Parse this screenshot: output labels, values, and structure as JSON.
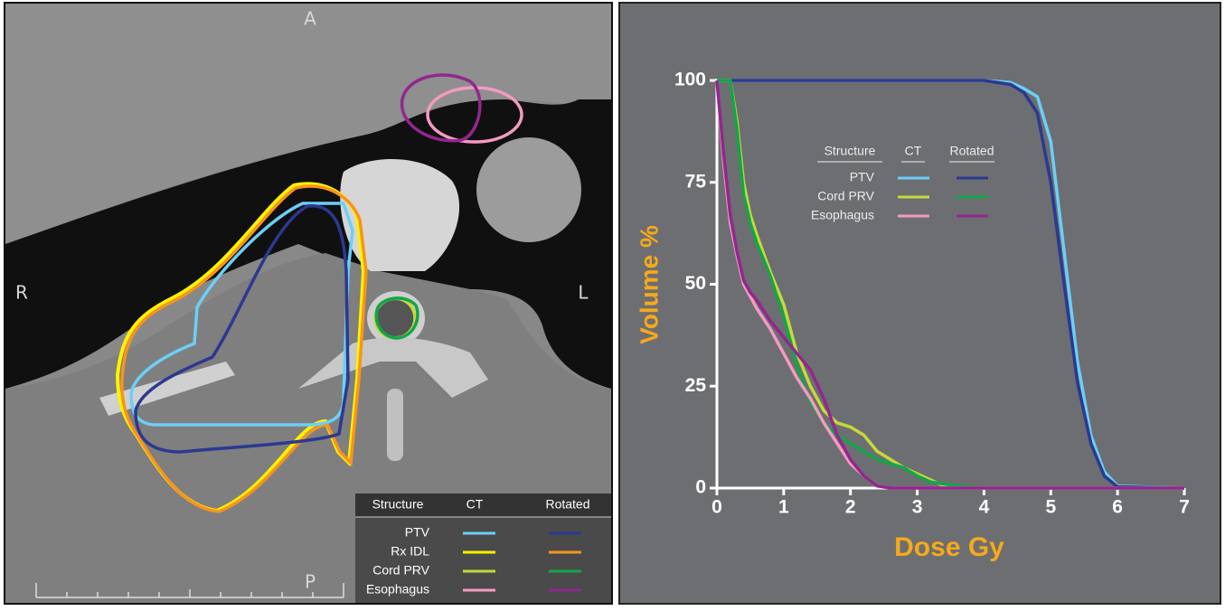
{
  "ct_image": {
    "orientation": {
      "anterior": "A",
      "posterior": "P",
      "right": "R",
      "left": "L"
    },
    "legend": {
      "headers": [
        "Structure",
        "CT",
        "Rotated"
      ],
      "rows": [
        {
          "structure": "PTV",
          "colors": [
            "#6ccff6",
            "#2b3990"
          ]
        },
        {
          "structure": "Rx IDL",
          "colors": [
            "#fff200",
            "#f7941d"
          ]
        },
        {
          "structure": "Cord PRV",
          "colors": [
            "#c5d93a",
            "#13a54a"
          ]
        },
        {
          "structure": "Esophagus",
          "colors": [
            "#f49ac1",
            "#92278f"
          ]
        }
      ]
    }
  },
  "chart_data": {
    "type": "line",
    "x_label": "Dose Gy",
    "y_label": "Volume %",
    "xlim": [
      0,
      7
    ],
    "xticks": [
      0,
      1,
      2,
      3,
      4,
      5,
      6,
      7
    ],
    "ylim": [
      0,
      100
    ],
    "yticks": [
      0,
      25,
      50,
      75,
      100
    ],
    "legend_headers": [
      "Structure",
      "CT",
      "Rotated"
    ],
    "x": [
      0,
      0.1,
      0.2,
      0.3,
      0.4,
      0.5,
      0.6,
      0.8,
      1.0,
      1.2,
      1.4,
      1.6,
      1.8,
      2.0,
      2.2,
      2.4,
      2.6,
      2.8,
      3.0,
      3.2,
      3.4,
      3.6,
      4.0,
      4.4,
      4.6,
      4.8,
      5.0,
      5.2,
      5.4,
      5.6,
      5.8,
      6.0,
      7.0
    ],
    "series": [
      {
        "name": "PTV",
        "colors": [
          "#6ccff6",
          "#2b3990"
        ],
        "values": [
          [
            100,
            100,
            100,
            100,
            100,
            100,
            100,
            100,
            100,
            100,
            100,
            100,
            100,
            100,
            100,
            100,
            100,
            100,
            100,
            100,
            100,
            100,
            100,
            99.5,
            98,
            96,
            85,
            58,
            31,
            13,
            4,
            0.5,
            0
          ],
          [
            100,
            100,
            100,
            100,
            100,
            100,
            100,
            100,
            100,
            100,
            100,
            100,
            100,
            100,
            100,
            100,
            100,
            100,
            100,
            100,
            100,
            100,
            100,
            99,
            97,
            92,
            75,
            50,
            26,
            11,
            3,
            0.3,
            0
          ]
        ]
      },
      {
        "name": "Cord PRV",
        "colors": [
          "#c5d93a",
          "#13a54a"
        ],
        "values": [
          [
            100,
            100,
            100,
            90,
            75,
            67,
            62,
            53,
            45,
            33,
            25,
            19,
            16,
            15,
            13,
            9,
            7,
            5,
            3.5,
            2,
            0.5,
            0,
            0,
            0,
            0,
            0,
            0,
            0,
            0,
            0,
            0,
            0,
            0
          ],
          [
            100,
            100,
            100,
            88,
            72,
            65,
            60,
            52,
            42,
            30,
            21,
            16,
            13,
            11,
            9,
            7,
            6,
            5,
            3,
            1.5,
            1,
            0.5,
            0,
            0,
            0,
            0,
            0,
            0,
            0,
            0,
            0,
            0,
            0
          ]
        ]
      },
      {
        "name": "Esophagus",
        "colors": [
          "#f49ac1",
          "#92278f"
        ],
        "values": [
          [
            100,
            80,
            65,
            57,
            50,
            47,
            44,
            39,
            33,
            27,
            22,
            16,
            11,
            6,
            3,
            0.5,
            0,
            0,
            0,
            0,
            0,
            0,
            0,
            0,
            0,
            0,
            0,
            0,
            0,
            0,
            0,
            0,
            0
          ],
          [
            100,
            82,
            67,
            58,
            51,
            48,
            46,
            41,
            37,
            33,
            29,
            22,
            13,
            7,
            3,
            0.5,
            0,
            0,
            0,
            0,
            0,
            0,
            0,
            0,
            0,
            0,
            0,
            0,
            0,
            0,
            0,
            0,
            0
          ]
        ]
      }
    ]
  }
}
